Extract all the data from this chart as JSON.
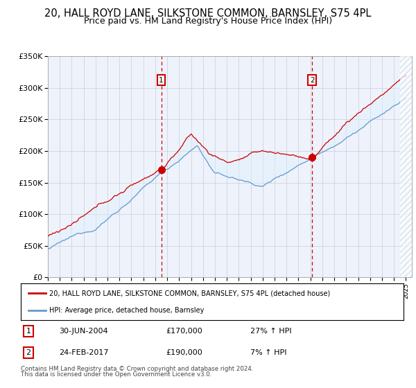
{
  "title": "20, HALL ROYD LANE, SILKSTONE COMMON, BARNSLEY, S75 4PL",
  "subtitle": "Price paid vs. HM Land Registry's House Price Index (HPI)",
  "legend_line1": "20, HALL ROYD LANE, SILKSTONE COMMON, BARNSLEY, S75 4PL (detached house)",
  "legend_line2": "HPI: Average price, detached house, Barnsley",
  "sale1_date": "30-JUN-2004",
  "sale1_price": 170000,
  "sale1_pct": "27%",
  "sale1_x": 2004.5,
  "sale2_date": "24-FEB-2017",
  "sale2_price": 190000,
  "sale2_pct": "7%",
  "sale2_x": 2017.15,
  "footnote1": "Contains HM Land Registry data © Crown copyright and database right 2024.",
  "footnote2": "This data is licensed under the Open Government Licence v3.0.",
  "red_color": "#cc0000",
  "blue_color": "#6699cc",
  "fill_color": "#ddeeff",
  "ylim": [
    0,
    350000
  ],
  "yticks": [
    0,
    50000,
    100000,
    150000,
    200000,
    250000,
    300000,
    350000
  ],
  "background_color": "#eef3fb",
  "hatch_color": "#c8d4e8"
}
